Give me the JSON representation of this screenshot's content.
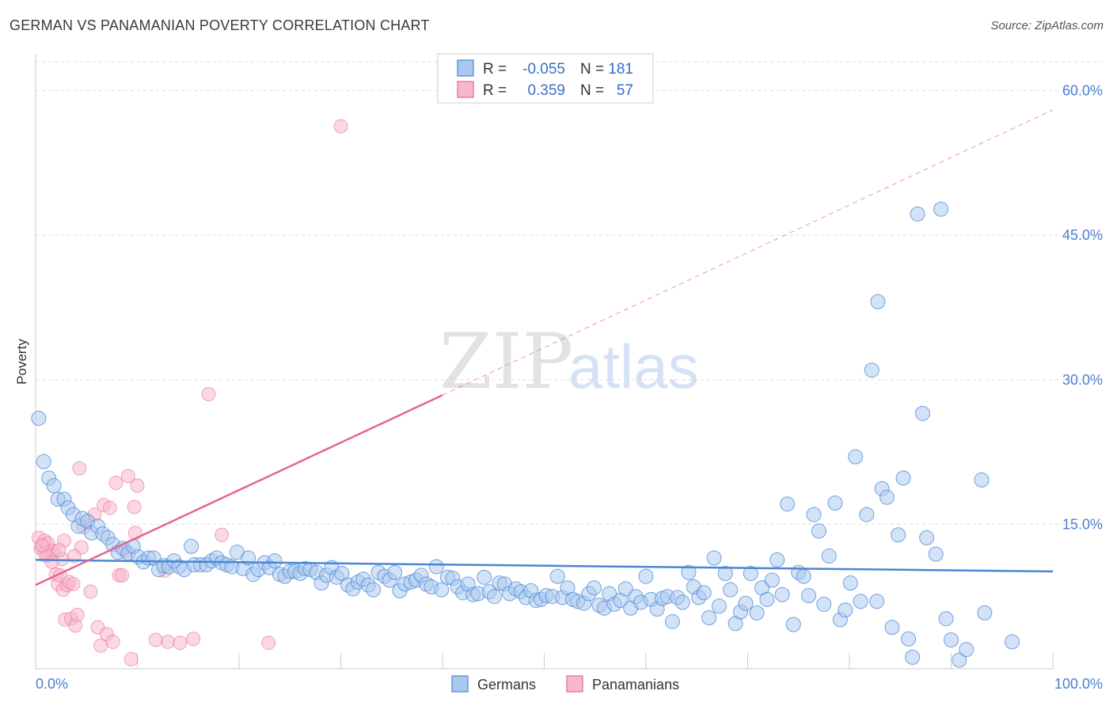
{
  "header": {
    "title": "GERMAN VS PANAMANIAN POVERTY CORRELATION CHART",
    "source": "Source: ZipAtlas.com"
  },
  "watermark": {
    "zip": "ZIP",
    "atlas": "atlas"
  },
  "legend": {
    "rows": [
      {
        "r_label": "R =",
        "r_value": "-0.055",
        "n_label": "N =",
        "n_value": "181",
        "color": "#a8c8f0"
      },
      {
        "r_label": "R =",
        "r_value": "0.359",
        "n_label": "N =",
        "n_value": "57",
        "color": "#f7b8cc"
      }
    ]
  },
  "chart_data": {
    "type": "scatter",
    "title": "GERMAN VS PANAMANIAN POVERTY CORRELATION CHART",
    "xlabel": "",
    "ylabel": "Poverty",
    "xlim": [
      0,
      100
    ],
    "ylim": [
      0,
      63
    ],
    "x_tick_labels": [
      "0.0%",
      "100.0%"
    ],
    "y_ticks": [
      15,
      30,
      45,
      60
    ],
    "y_tick_labels": [
      "15.0%",
      "30.0%",
      "45.0%",
      "60.0%"
    ],
    "grid": true,
    "legend_position": "top-center",
    "colors": {
      "germans": "#4a86d4",
      "panamanians": "#e8648f",
      "germans_fill": "#a8c8f0",
      "panamanians_fill": "#f7b8cc"
    },
    "series": [
      {
        "name": "Germans",
        "trend": {
          "x": [
            0,
            100
          ],
          "y": [
            11.3,
            10.1
          ]
        },
        "points": [
          [
            0.3,
            26.0
          ],
          [
            0.8,
            21.5
          ],
          [
            1.3,
            19.8
          ],
          [
            1.8,
            19.0
          ],
          [
            2.2,
            17.6
          ],
          [
            2.8,
            17.6
          ],
          [
            3.2,
            16.7
          ],
          [
            3.7,
            16.0
          ],
          [
            4.2,
            14.8
          ],
          [
            4.6,
            15.6
          ],
          [
            5.1,
            15.3
          ],
          [
            5.5,
            14.1
          ],
          [
            6.1,
            14.8
          ],
          [
            6.6,
            14.0
          ],
          [
            7.1,
            13.6
          ],
          [
            7.6,
            12.9
          ],
          [
            8.1,
            12.1
          ],
          [
            8.6,
            12.5
          ],
          [
            9.1,
            12.0
          ],
          [
            9.6,
            12.7
          ],
          [
            10.1,
            11.6
          ],
          [
            10.6,
            11.1
          ],
          [
            11.1,
            11.5
          ],
          [
            11.6,
            11.5
          ],
          [
            12.1,
            10.3
          ],
          [
            12.6,
            10.7
          ],
          [
            13.1,
            10.6
          ],
          [
            13.6,
            11.2
          ],
          [
            14.1,
            10.6
          ],
          [
            14.6,
            10.3
          ],
          [
            15.3,
            12.7
          ],
          [
            15.6,
            10.8
          ],
          [
            16.2,
            10.8
          ],
          [
            16.8,
            10.8
          ],
          [
            17.3,
            11.2
          ],
          [
            17.8,
            11.5
          ],
          [
            18.3,
            11.0
          ],
          [
            18.8,
            10.8
          ],
          [
            19.3,
            10.6
          ],
          [
            19.8,
            12.1
          ],
          [
            20.4,
            10.4
          ],
          [
            20.9,
            11.5
          ],
          [
            21.4,
            9.8
          ],
          [
            21.9,
            10.3
          ],
          [
            22.5,
            11.0
          ],
          [
            23.0,
            10.5
          ],
          [
            23.5,
            11.2
          ],
          [
            24.0,
            9.8
          ],
          [
            24.5,
            9.6
          ],
          [
            25.0,
            10.1
          ],
          [
            25.5,
            10.1
          ],
          [
            26.0,
            9.9
          ],
          [
            26.5,
            10.4
          ],
          [
            27.0,
            10.3
          ],
          [
            27.6,
            10.0
          ],
          [
            28.1,
            8.9
          ],
          [
            28.6,
            9.7
          ],
          [
            29.1,
            10.5
          ],
          [
            29.6,
            9.5
          ],
          [
            30.1,
            9.9
          ],
          [
            30.7,
            8.7
          ],
          [
            31.2,
            8.3
          ],
          [
            31.7,
            9.0
          ],
          [
            32.2,
            9.3
          ],
          [
            32.7,
            8.7
          ],
          [
            33.2,
            8.2
          ],
          [
            33.7,
            10.0
          ],
          [
            34.3,
            9.6
          ],
          [
            34.8,
            9.2
          ],
          [
            35.3,
            10.0
          ],
          [
            35.8,
            8.1
          ],
          [
            36.3,
            8.8
          ],
          [
            36.9,
            9.0
          ],
          [
            37.4,
            9.2
          ],
          [
            37.9,
            9.7
          ],
          [
            38.4,
            8.8
          ],
          [
            38.9,
            8.5
          ],
          [
            39.4,
            10.6
          ],
          [
            39.9,
            8.2
          ],
          [
            40.5,
            9.5
          ],
          [
            41.0,
            9.4
          ],
          [
            41.5,
            8.5
          ],
          [
            42.0,
            7.9
          ],
          [
            42.5,
            8.8
          ],
          [
            43.0,
            7.7
          ],
          [
            43.5,
            7.8
          ],
          [
            44.1,
            9.5
          ],
          [
            44.6,
            8.0
          ],
          [
            45.1,
            7.5
          ],
          [
            45.6,
            8.9
          ],
          [
            46.1,
            8.8
          ],
          [
            46.6,
            7.8
          ],
          [
            47.2,
            8.3
          ],
          [
            47.7,
            8.0
          ],
          [
            48.2,
            7.4
          ],
          [
            48.7,
            8.1
          ],
          [
            49.2,
            7.1
          ],
          [
            49.7,
            7.2
          ],
          [
            50.2,
            7.6
          ],
          [
            50.8,
            7.5
          ],
          [
            51.3,
            9.6
          ],
          [
            51.8,
            7.4
          ],
          [
            52.3,
            8.4
          ],
          [
            52.8,
            7.2
          ],
          [
            53.3,
            7.0
          ],
          [
            53.9,
            6.8
          ],
          [
            54.4,
            7.8
          ],
          [
            54.9,
            8.4
          ],
          [
            55.4,
            6.6
          ],
          [
            55.9,
            6.3
          ],
          [
            56.4,
            7.8
          ],
          [
            56.9,
            6.7
          ],
          [
            57.5,
            7.1
          ],
          [
            58.0,
            8.3
          ],
          [
            58.5,
            6.3
          ],
          [
            59.0,
            7.5
          ],
          [
            59.5,
            6.9
          ],
          [
            60.0,
            9.6
          ],
          [
            60.5,
            7.2
          ],
          [
            61.1,
            6.2
          ],
          [
            61.6,
            7.3
          ],
          [
            62.1,
            7.5
          ],
          [
            62.6,
            4.9
          ],
          [
            63.1,
            7.4
          ],
          [
            63.6,
            6.9
          ],
          [
            64.2,
            10.0
          ],
          [
            64.7,
            8.5
          ],
          [
            65.2,
            7.4
          ],
          [
            65.7,
            7.9
          ],
          [
            66.2,
            5.3
          ],
          [
            66.7,
            11.5
          ],
          [
            67.2,
            6.5
          ],
          [
            67.8,
            9.9
          ],
          [
            68.3,
            8.2
          ],
          [
            68.8,
            4.7
          ],
          [
            69.3,
            5.9
          ],
          [
            69.8,
            6.8
          ],
          [
            70.3,
            9.9
          ],
          [
            70.9,
            5.8
          ],
          [
            71.4,
            8.4
          ],
          [
            71.9,
            7.2
          ],
          [
            72.4,
            9.2
          ],
          [
            72.9,
            11.3
          ],
          [
            73.4,
            7.7
          ],
          [
            73.9,
            17.1
          ],
          [
            74.5,
            4.6
          ],
          [
            75.0,
            10.0
          ],
          [
            75.5,
            9.6
          ],
          [
            76.0,
            7.6
          ],
          [
            76.5,
            16.0
          ],
          [
            77.0,
            14.3
          ],
          [
            77.5,
            6.7
          ],
          [
            78.0,
            11.7
          ],
          [
            78.6,
            17.2
          ],
          [
            79.1,
            5.1
          ],
          [
            79.6,
            6.1
          ],
          [
            80.1,
            8.9
          ],
          [
            80.6,
            22.0
          ],
          [
            81.1,
            7.0
          ],
          [
            81.7,
            16.0
          ],
          [
            82.2,
            31.0
          ],
          [
            82.7,
            7.0
          ],
          [
            83.2,
            18.7
          ],
          [
            83.7,
            17.8
          ],
          [
            84.2,
            4.3
          ],
          [
            84.8,
            13.9
          ],
          [
            85.3,
            19.8
          ],
          [
            85.8,
            3.1
          ],
          [
            86.2,
            1.2
          ],
          [
            86.7,
            47.2
          ],
          [
            87.2,
            26.5
          ],
          [
            87.6,
            13.6
          ],
          [
            88.5,
            11.9
          ],
          [
            89.0,
            47.7
          ],
          [
            89.5,
            5.2
          ],
          [
            90.0,
            3.0
          ],
          [
            90.8,
            0.9
          ],
          [
            91.5,
            2.0
          ],
          [
            93.0,
            19.6
          ],
          [
            93.3,
            5.8
          ],
          [
            96.0,
            2.8
          ],
          [
            82.8,
            38.1
          ]
        ]
      },
      {
        "name": "Panamanians",
        "trend": {
          "x": [
            0,
            40
          ],
          "y": [
            8.7,
            28.4
          ]
        },
        "trend_extension": {
          "x": [
            40,
            100
          ],
          "y": [
            28.4,
            58.0
          ]
        },
        "points": [
          [
            0.3,
            13.6
          ],
          [
            0.5,
            12.5
          ],
          [
            0.7,
            12.8
          ],
          [
            0.9,
            13.3
          ],
          [
            1.1,
            11.7
          ],
          [
            1.3,
            12.0
          ],
          [
            1.5,
            12.3
          ],
          [
            1.8,
            12.2
          ],
          [
            2.0,
            9.8
          ],
          [
            2.2,
            8.8
          ],
          [
            2.4,
            9.7
          ],
          [
            2.6,
            11.4
          ],
          [
            2.7,
            8.2
          ],
          [
            2.9,
            5.1
          ],
          [
            3.1,
            8.7
          ],
          [
            3.3,
            9.0
          ],
          [
            3.5,
            5.2
          ],
          [
            3.7,
            8.8
          ],
          [
            3.9,
            4.5
          ],
          [
            4.1,
            5.6
          ],
          [
            4.3,
            20.8
          ],
          [
            4.5,
            12.6
          ],
          [
            4.7,
            14.7
          ],
          [
            5.1,
            15.3
          ],
          [
            5.4,
            8.0
          ],
          [
            5.8,
            16.0
          ],
          [
            6.1,
            4.3
          ],
          [
            6.4,
            2.4
          ],
          [
            6.7,
            17.0
          ],
          [
            7.0,
            3.6
          ],
          [
            7.3,
            16.7
          ],
          [
            7.6,
            2.8
          ],
          [
            7.9,
            19.3
          ],
          [
            8.2,
            9.7
          ],
          [
            8.5,
            9.7
          ],
          [
            8.8,
            12.2
          ],
          [
            9.1,
            20.0
          ],
          [
            9.4,
            1.0
          ],
          [
            9.7,
            16.8
          ],
          [
            10.0,
            19.0
          ],
          [
            12.7,
            10.2
          ],
          [
            13.0,
            2.8
          ],
          [
            14.2,
            2.7
          ],
          [
            15.5,
            3.1
          ],
          [
            17.0,
            28.5
          ],
          [
            18.3,
            13.9
          ],
          [
            22.9,
            2.7
          ],
          [
            30.0,
            56.3
          ],
          [
            9.8,
            14.1
          ],
          [
            2.8,
            13.3
          ],
          [
            3.8,
            11.7
          ],
          [
            1.6,
            11.1
          ],
          [
            0.9,
            12.0
          ],
          [
            11.8,
            3.0
          ],
          [
            1.2,
            13.0
          ],
          [
            0.6,
            12.8
          ],
          [
            2.3,
            12.3
          ]
        ]
      }
    ]
  },
  "bottom_legend": {
    "items": [
      {
        "label": "Germans",
        "color": "#a8c8f0"
      },
      {
        "label": "Panamanians",
        "color": "#f7b8cc"
      }
    ]
  }
}
